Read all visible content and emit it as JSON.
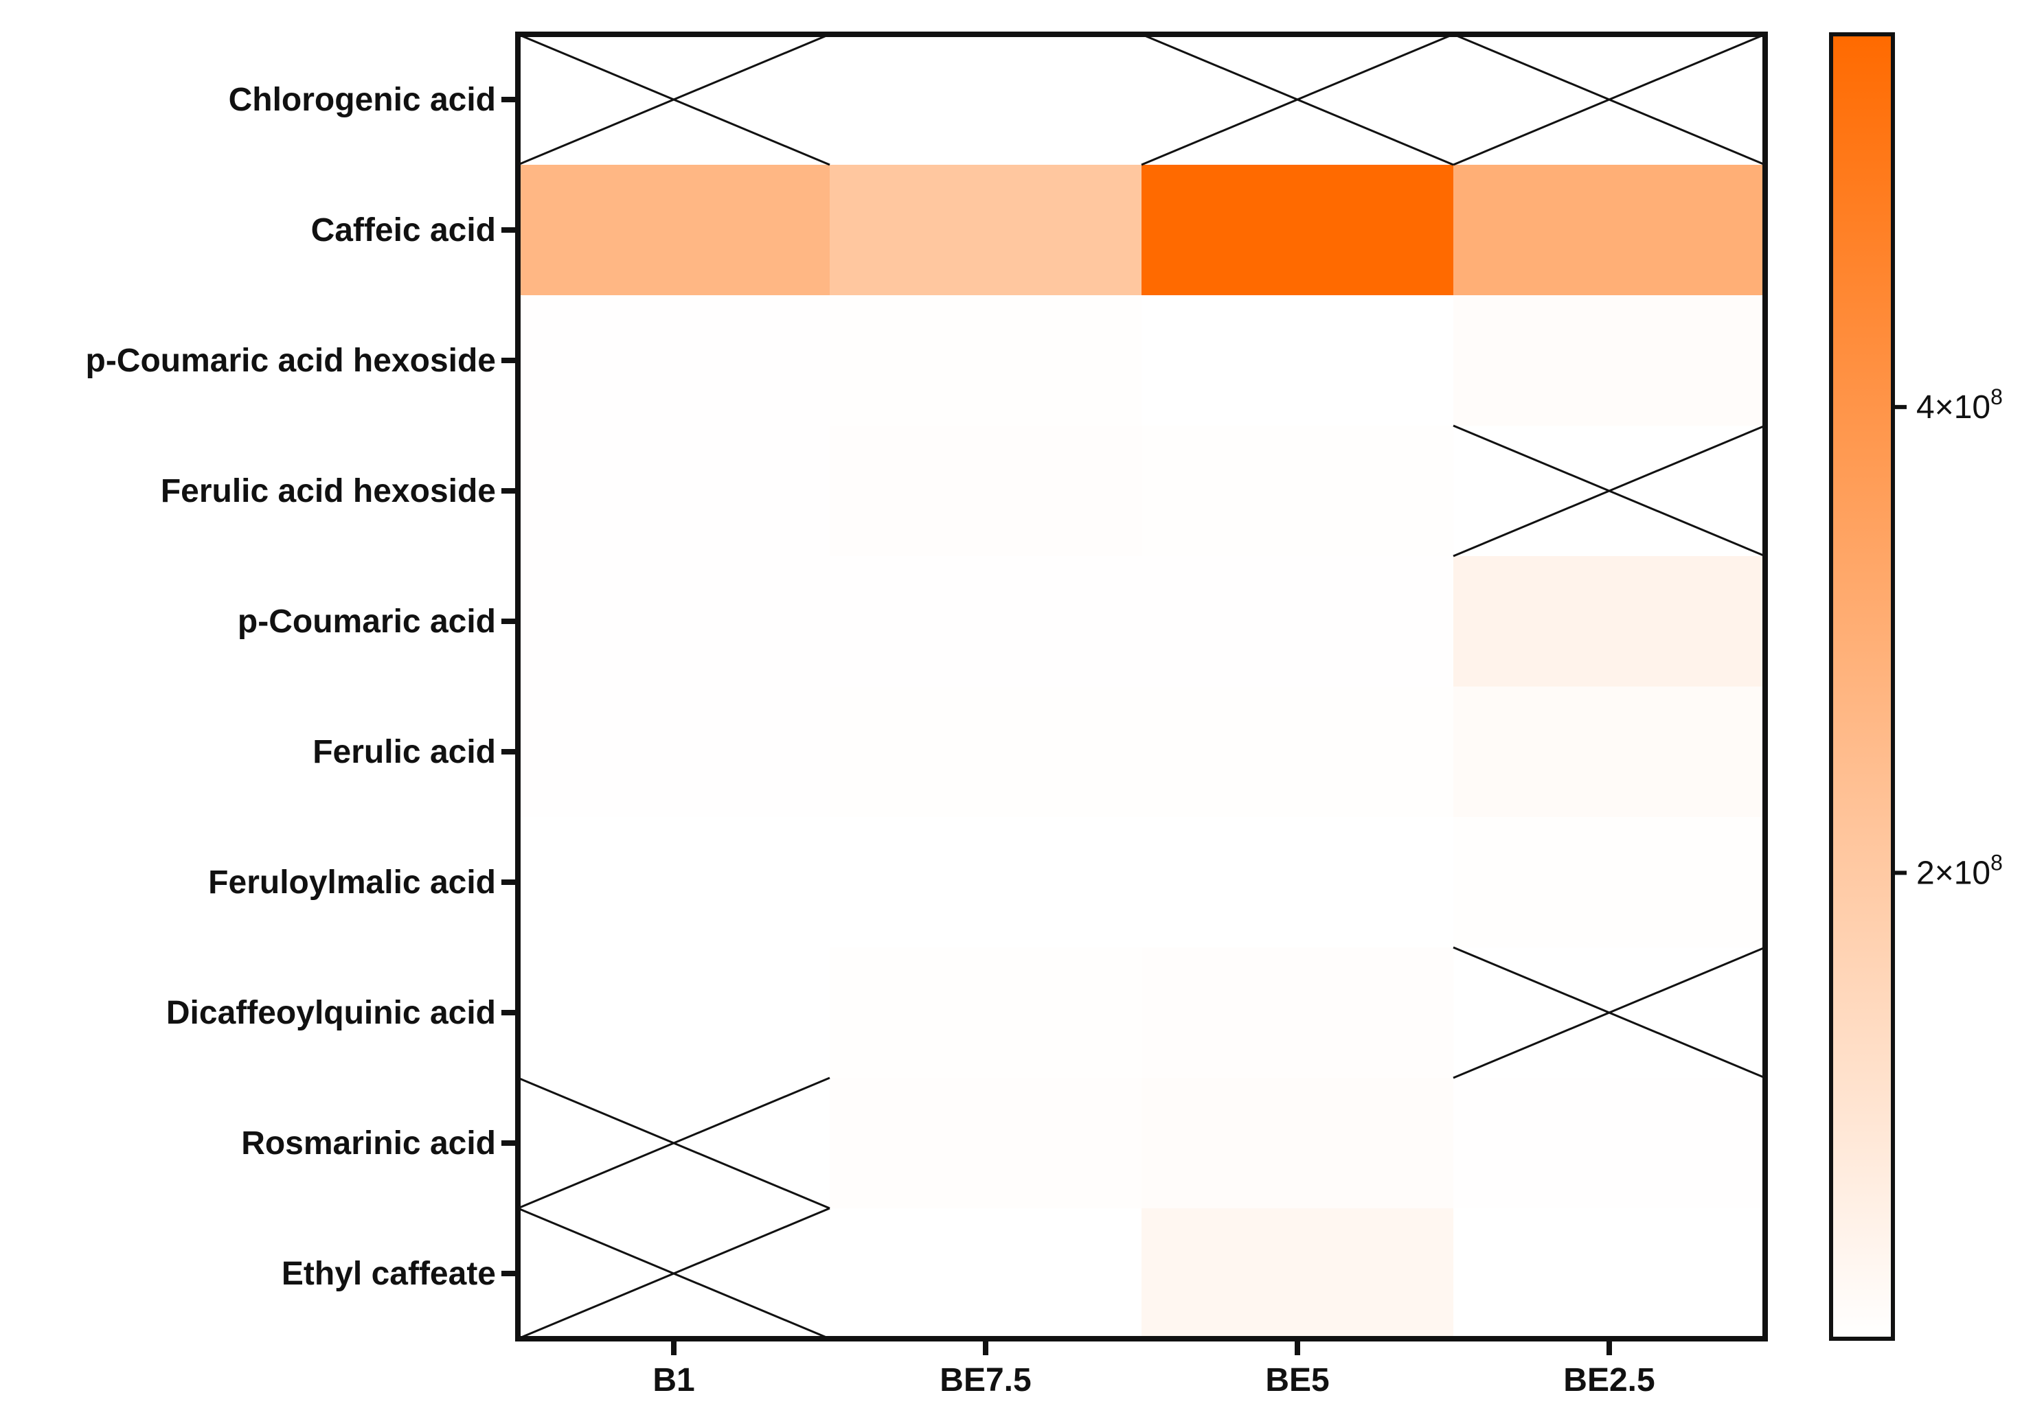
{
  "chart_data": {
    "type": "heatmap",
    "title": "",
    "xlabel": "",
    "ylabel": "",
    "columns": [
      "B1",
      "BE7.5",
      "BE5",
      "BE2.5"
    ],
    "rows": [
      "Chlorogenic acid",
      "Caffeic acid",
      "p-Coumaric acid hexoside",
      "Ferulic acid hexoside",
      "p-Coumaric acid",
      "Ferulic acid",
      "Feruloylmalic acid",
      "Dicaffeoylquinic acid",
      "Rosmarinic acid",
      "Ethyl caffeate"
    ],
    "values": [
      [
        null,
        0,
        null,
        null
      ],
      [
        270000000,
        210000000,
        560000000,
        300000000
      ],
      [
        3000000,
        4000000,
        0,
        10000000
      ],
      [
        3000000,
        6000000,
        4000000,
        null
      ],
      [
        2000000,
        3000000,
        3000000,
        45000000
      ],
      [
        3000000,
        4000000,
        5000000,
        15000000
      ],
      [
        1000000,
        1000000,
        1000000,
        4000000
      ],
      [
        1000000,
        4000000,
        7000000,
        null
      ],
      [
        null,
        6000000,
        11000000,
        2000000
      ],
      [
        null,
        1000000,
        30000000,
        1000000
      ]
    ],
    "missing_marker": "cross",
    "colorbar": {
      "min": 0,
      "max": 560000000,
      "min_color": "#ffffff",
      "max_color": "#ff6a00",
      "ticks": [
        {
          "value": 200000000,
          "mantissa": "2×10",
          "exponent": "8"
        },
        {
          "value": 400000000,
          "mantissa": "4×10",
          "exponent": "8"
        }
      ]
    }
  }
}
